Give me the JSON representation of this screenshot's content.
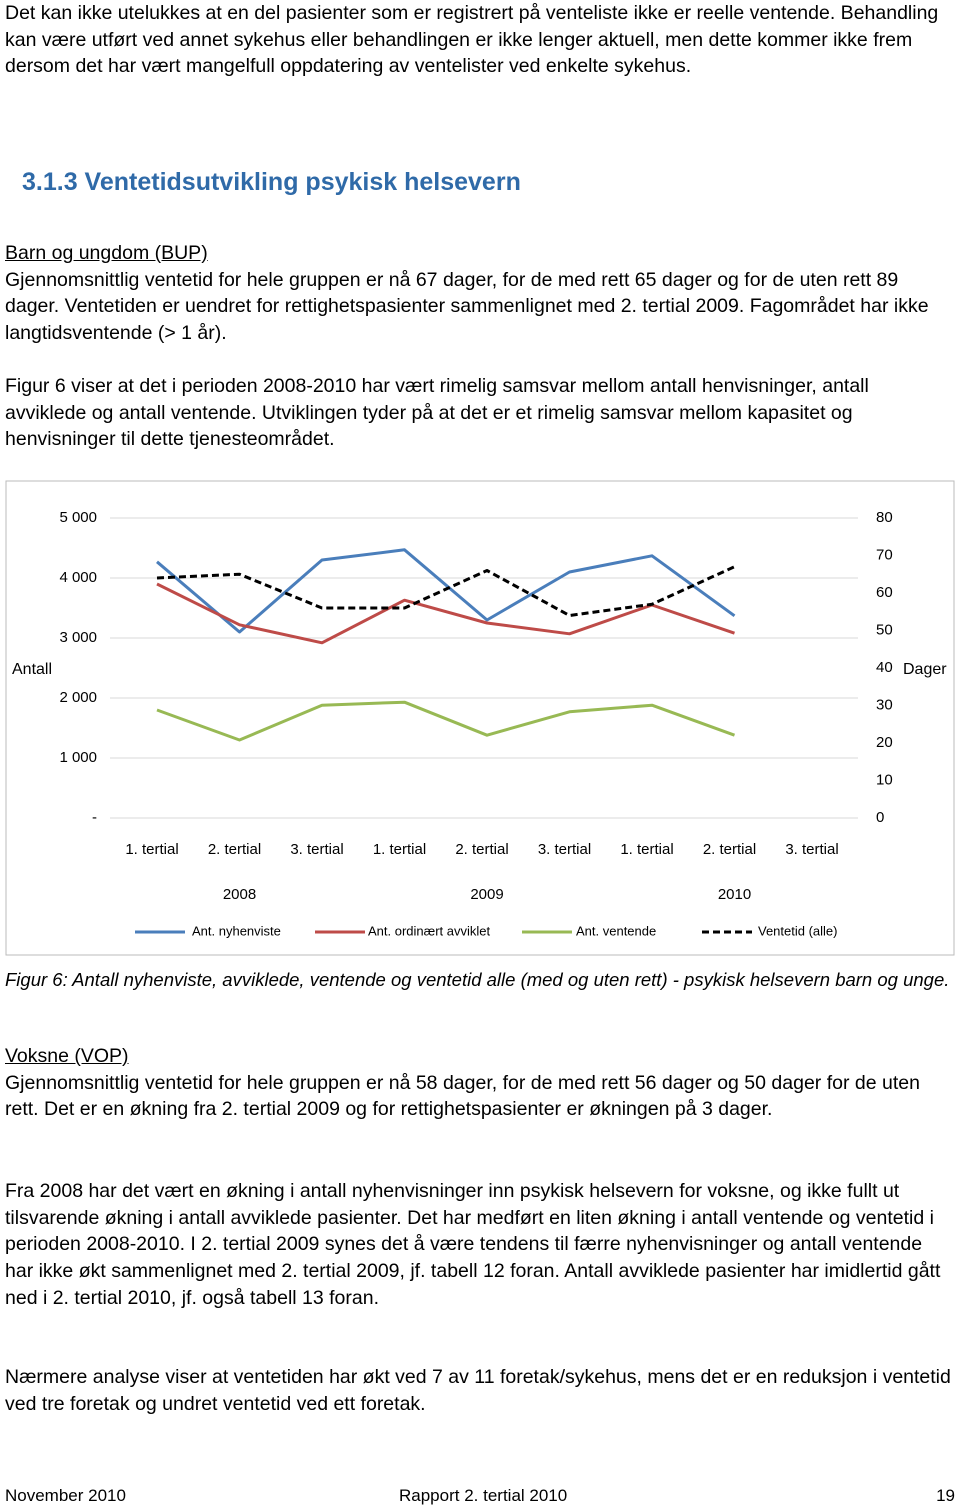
{
  "intro": "Det kan ikke utelukkes at en del pasienter som er registrert på venteliste ikke er reelle ventende. Behandling kan være utført ved annet sykehus eller behandlingen er ikke lenger aktuell, men dette kommer ikke frem dersom det har vært mangelfull oppdatering av ventelister ved enkelte sykehus.",
  "heading": "3.1.3 Ventetidsutvikling psykisk helsevern",
  "bup": {
    "title": "Barn og ungdom (BUP)",
    "text": "Gjennomsnittlig ventetid for hele gruppen er nå 67 dager, for de med rett 65 dager og for de uten rett 89 dager.  Ventetiden er uendret for rettighetspasienter sammenlignet med 2. tertial 2009. Fagområdet har ikke langtidsventende (> 1 år).",
    "text2": "Figur 6 viser at det i perioden 2008-2010 har vært rimelig samsvar mellom antall henvisninger, antall avviklede og antall ventende. Utviklingen tyder på at det er et rimelig samsvar mellom kapasitet og henvisninger til dette tjenesteområdet."
  },
  "chart_data": {
    "type": "line",
    "categories": [
      "1. tertial",
      "2. tertial",
      "3. tertial",
      "1. tertial",
      "2. tertial",
      "3. tertial",
      "1. tertial",
      "2. tertial",
      "3. tertial"
    ],
    "category_groups": [
      "2008",
      "2009",
      "2010"
    ],
    "ylabel": "Antall",
    "y2label": "Dager",
    "ylim": [
      0,
      5000
    ],
    "yticks": [
      {
        "value": 0,
        "label": "-"
      },
      {
        "value": 1000,
        "label": "1 000"
      },
      {
        "value": 2000,
        "label": "2 000"
      },
      {
        "value": 3000,
        "label": "3 000"
      },
      {
        "value": 4000,
        "label": "4 000"
      },
      {
        "value": 5000,
        "label": "5 000"
      }
    ],
    "y2lim": [
      0,
      80
    ],
    "y2ticks": [
      0,
      10,
      20,
      30,
      40,
      50,
      60,
      70,
      80
    ],
    "grid": true,
    "legend": "bottom",
    "series": [
      {
        "name": "Ant. nyhenviste",
        "color": "#4a7ebb",
        "values": [
          4270,
          3100,
          4300,
          4470,
          3300,
          4100,
          4370,
          3370,
          null
        ]
      },
      {
        "name": "Ant. ordinært avviklet",
        "color": "#be4b48",
        "values": [
          3900,
          3220,
          2920,
          3630,
          3250,
          3070,
          3550,
          3080,
          null
        ]
      },
      {
        "name": "Ant. ventende",
        "color": "#98b954",
        "values": [
          1800,
          1300,
          1880,
          1930,
          1380,
          1770,
          1880,
          1380,
          null
        ]
      },
      {
        "name": "Ventetid (alle)",
        "color": "#000000",
        "line_style": "dashed",
        "axis": "y2",
        "values": [
          64,
          65,
          56,
          56,
          66,
          54,
          57,
          67,
          null
        ]
      }
    ]
  },
  "caption": "Figur 6: Antall nyhenviste, avviklede, ventende og ventetid alle (med og uten rett) - psykisk helsevern barn og unge.",
  "vop": {
    "title": "Voksne (VOP)",
    "text": "Gjennomsnittlig ventetid for hele gruppen er nå 58 dager, for de med rett 56 dager og 50 dager for de uten rett. Det er en økning fra 2. tertial 2009 og for rettighetspasienter er økningen på 3 dager.",
    "text2": "Fra 2008 har det vært en økning i antall nyhenvisninger inn psykisk helsevern for voksne, og ikke fullt ut tilsvarende økning i antall avviklede pasienter. Det har medført en liten økning i antall ventende og ventetid i perioden 2008-2010. I 2. tertial 2009 synes det å være tendens til færre nyhenvisninger og antall ventende har ikke økt sammenlignet med 2. tertial 2009, jf. tabell 12 foran. Antall avviklede pasienter har imidlertid gått ned i 2. tertial 2010, jf. også tabell 13 foran.",
    "text3": "Nærmere analyse viser at ventetiden har økt ved 7 av 11 foretak/sykehus, mens det er en reduksjon i ventetid ved tre foretak og undret ventetid ved ett foretak."
  },
  "footer": {
    "left": "November 2010",
    "center": "Rapport 2. tertial 2010",
    "right": "19"
  }
}
